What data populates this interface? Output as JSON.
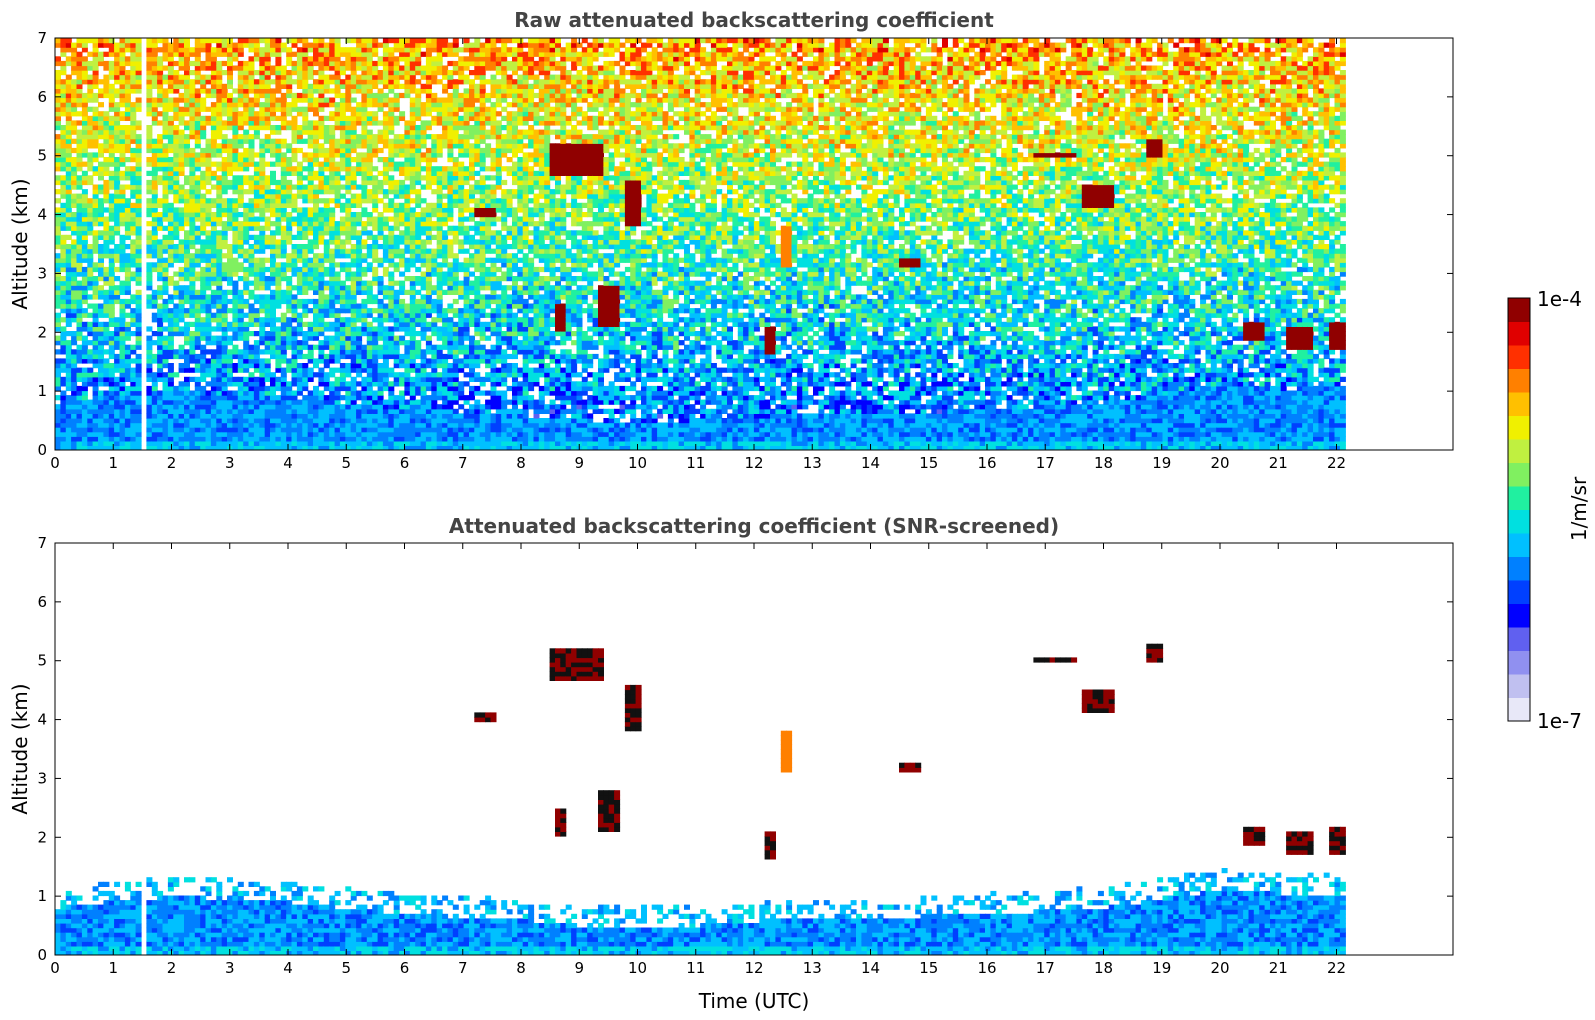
{
  "chart_data": [
    {
      "type": "heatmap",
      "title": "Raw attenuated backscattering coefficient",
      "xlabel": "",
      "ylabel": "Altitude (km)",
      "xlim": [
        0,
        24
      ],
      "ylim": [
        0,
        7
      ],
      "xticks": [
        "0",
        "1",
        "2",
        "3",
        "4",
        "5",
        "6",
        "7",
        "8",
        "9",
        "10",
        "11",
        "12",
        "13",
        "14",
        "15",
        "16",
        "17",
        "18",
        "19",
        "20",
        "21",
        "22"
      ],
      "yticks": [
        "0",
        "1",
        "2",
        "3",
        "4",
        "5",
        "6",
        "7"
      ],
      "data_end_time": 22.15,
      "gap_time": 1.5,
      "screened": false,
      "boundary_layer_top_km": [
        {
          "t": 0,
          "h": 0.8
        },
        {
          "t": 1,
          "h": 0.9
        },
        {
          "t": 2,
          "h": 1.0
        },
        {
          "t": 4,
          "h": 0.9
        },
        {
          "t": 6,
          "h": 0.7
        },
        {
          "t": 8,
          "h": 0.6
        },
        {
          "t": 9,
          "h": 0.5
        },
        {
          "t": 11,
          "h": 0.5
        },
        {
          "t": 12.5,
          "h": 0.6
        },
        {
          "t": 14,
          "h": 0.6
        },
        {
          "t": 16,
          "h": 0.7
        },
        {
          "t": 18,
          "h": 0.8
        },
        {
          "t": 20,
          "h": 1.1
        },
        {
          "t": 22.15,
          "h": 1.0
        }
      ],
      "clouds": [
        {
          "t0": 7.2,
          "t1": 7.6,
          "h0": 3.95,
          "h1": 4.15,
          "level": "high"
        },
        {
          "t0": 8.5,
          "t1": 9.4,
          "h0": 4.7,
          "h1": 5.2,
          "level": "high"
        },
        {
          "t0": 9.8,
          "t1": 10.1,
          "h0": 3.8,
          "h1": 4.6,
          "level": "high"
        },
        {
          "t0": 9.3,
          "t1": 9.7,
          "h0": 2.1,
          "h1": 2.8,
          "level": "high"
        },
        {
          "t0": 8.6,
          "t1": 8.75,
          "h0": 2.0,
          "h1": 2.5,
          "level": "high"
        },
        {
          "t0": 12.5,
          "t1": 12.65,
          "h0": 3.1,
          "h1": 3.8,
          "level": "orange"
        },
        {
          "t0": 12.2,
          "t1": 12.35,
          "h0": 1.6,
          "h1": 2.1,
          "level": "high"
        },
        {
          "t0": 14.5,
          "t1": 14.9,
          "h0": 3.1,
          "h1": 3.25,
          "level": "high"
        },
        {
          "t0": 16.8,
          "t1": 17.5,
          "h0": 4.95,
          "h1": 5.05,
          "level": "high"
        },
        {
          "t0": 17.6,
          "t1": 18.2,
          "h0": 4.1,
          "h1": 4.5,
          "level": "high"
        },
        {
          "t0": 18.7,
          "t1": 19.0,
          "h0": 5.0,
          "h1": 5.25,
          "level": "high"
        },
        {
          "t0": 20.4,
          "t1": 20.8,
          "h0": 1.9,
          "h1": 2.15,
          "level": "high"
        },
        {
          "t0": 21.1,
          "t1": 21.6,
          "h0": 1.75,
          "h1": 2.1,
          "level": "high"
        },
        {
          "t0": 21.9,
          "t1": 22.15,
          "h0": 1.75,
          "h1": 2.2,
          "level": "high"
        }
      ]
    },
    {
      "type": "heatmap",
      "title": "Attenuated backscattering coefficient (SNR-screened)",
      "xlabel": "Time (UTC)",
      "ylabel": "Altitude (km)",
      "xlim": [
        0,
        24
      ],
      "ylim": [
        0,
        7
      ],
      "xticks": [
        "0",
        "1",
        "2",
        "3",
        "4",
        "5",
        "6",
        "7",
        "8",
        "9",
        "10",
        "11",
        "12",
        "13",
        "14",
        "15",
        "16",
        "17",
        "18",
        "19",
        "20",
        "21",
        "22"
      ],
      "yticks": [
        "0",
        "1",
        "2",
        "3",
        "4",
        "5",
        "6",
        "7"
      ],
      "data_end_time": 22.15,
      "gap_time": 1.5,
      "screened": true
    }
  ],
  "colorbar": {
    "label": "1/m/sr",
    "max_label": "1e-4",
    "min_label": "1e-7",
    "scale": "log",
    "colors": [
      "#e8e8f8",
      "#c0c0f0",
      "#9090f0",
      "#6060f0",
      "#0000ff",
      "#0040ff",
      "#0080ff",
      "#00c0ff",
      "#00e0e0",
      "#20f0a0",
      "#80f060",
      "#c0f040",
      "#f0f000",
      "#ffc000",
      "#ff8000",
      "#ff3000",
      "#e00000",
      "#900000"
    ]
  }
}
